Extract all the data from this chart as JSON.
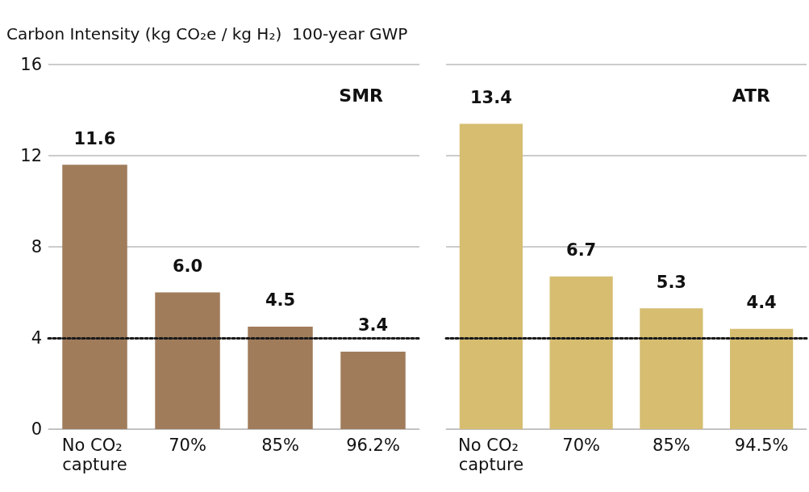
{
  "chart_data": [
    {
      "type": "bar",
      "ylabel": "Carbon Intensity (kg CO₂e / kg H₂)  100-year GWP",
      "title": "SMR",
      "categories": [
        "No CO₂ capture",
        "70%",
        "85%",
        "96.2%"
      ],
      "values": [
        11.6,
        6.0,
        4.5,
        3.4
      ],
      "value_labels": [
        "11.6",
        "6.0",
        "4.5",
        "3.4"
      ],
      "color": "#a07c5b",
      "ylim": [
        0,
        16
      ],
      "yticks": [
        0,
        4,
        8,
        12,
        16
      ],
      "grid": "y",
      "ref_lines": [
        {
          "axis": "y",
          "value": 4,
          "line_style": "dotted",
          "color": "#1a1a1a"
        }
      ]
    },
    {
      "type": "bar",
      "title": "ATR",
      "categories": [
        "No CO₂ capture",
        "70%",
        "85%",
        "94.5%"
      ],
      "values": [
        13.4,
        6.7,
        5.3,
        4.4
      ],
      "value_labels": [
        "13.4",
        "6.7",
        "5.3",
        "4.4"
      ],
      "color": "#d6bd70",
      "ylim": [
        0,
        16
      ],
      "yticks": [
        0,
        4,
        8,
        12,
        16
      ],
      "grid": "y",
      "tick_labels": "x",
      "ref_lines": [
        {
          "axis": "y",
          "value": 4,
          "line_style": "dotted",
          "color": "#1a1a1a"
        }
      ]
    }
  ]
}
